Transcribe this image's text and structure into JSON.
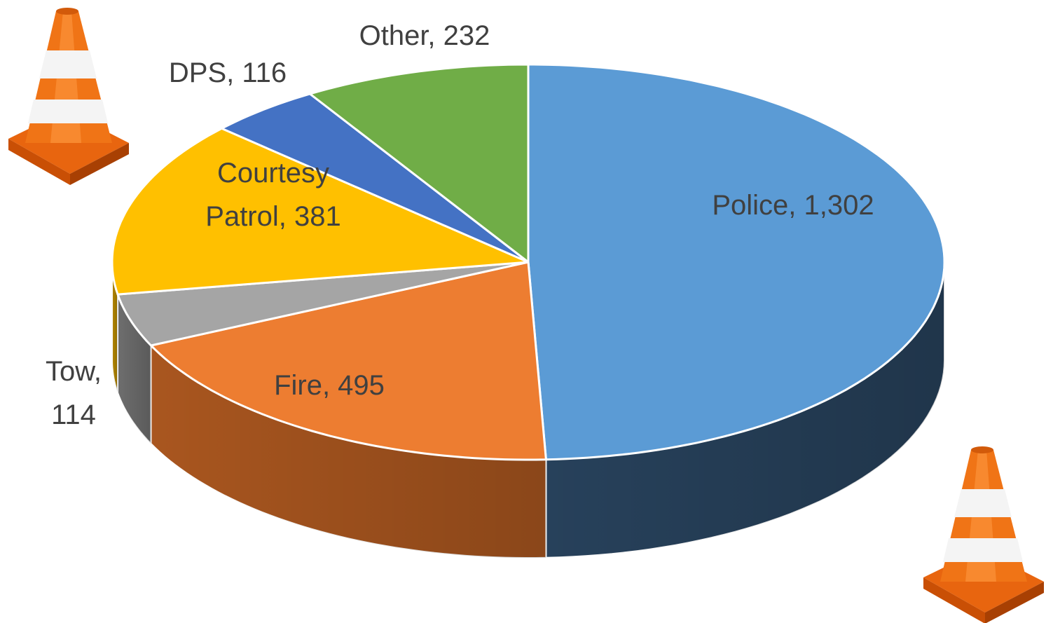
{
  "chart_data": {
    "type": "pie",
    "title": "",
    "slices": [
      {
        "name": "Police",
        "value": 1302,
        "label_line1": "Police, 1,302",
        "label_line2": "",
        "color": "#5b9bd5",
        "side_color": "#27415b"
      },
      {
        "name": "Fire",
        "value": 495,
        "label_line1": "Fire, 495",
        "label_line2": "",
        "color": "#ed7d31",
        "side_color": "#a9561f"
      },
      {
        "name": "Tow",
        "value": 114,
        "label_line1": "Tow,",
        "label_line2": "114",
        "color": "#a5a5a5",
        "side_color": "#6e6e6e"
      },
      {
        "name": "Courtesy Patrol",
        "value": 381,
        "label_line1": "Courtesy",
        "label_line2": "Patrol, 381",
        "color": "#ffc000",
        "side_color": "#b38600"
      },
      {
        "name": "DPS",
        "value": 116,
        "label_line1": "DPS, 116",
        "label_line2": "",
        "color": "#4472c4",
        "side_color": "#2d4f8a"
      },
      {
        "name": "Other",
        "value": 232,
        "label_line1": "Other, 232",
        "label_line2": "",
        "color": "#70ad47",
        "side_color": "#4d7a30"
      }
    ],
    "legend": "none",
    "decorations": [
      "traffic-cone-icon",
      "traffic-cone-icon"
    ]
  }
}
